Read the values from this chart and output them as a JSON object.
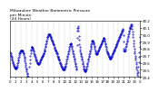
{
  "title": "Milwaukee Weather Barometric Pressure\nper Minute\n(24 Hours)",
  "title_fontsize": 3.2,
  "bg_color": "#ffffff",
  "line_color": "#0000cc",
  "marker_size": 0.8,
  "grid_color": "#aaaaaa",
  "grid_style": "--",
  "ylim": [
    29.4,
    30.2
  ],
  "xlim": [
    0,
    1440
  ],
  "xtick_step": 60,
  "tick_fontsize": 2.8,
  "pressure_data": [
    29.75,
    29.73,
    29.71,
    29.7,
    29.68,
    29.67,
    29.65,
    29.64,
    29.62,
    29.61,
    29.59,
    29.58,
    29.57,
    29.56,
    29.55,
    29.54,
    29.53,
    29.53,
    29.52,
    29.52,
    29.52,
    29.53,
    29.54,
    29.55,
    29.57,
    29.59,
    29.61,
    29.63,
    29.65,
    29.67,
    29.69,
    29.71,
    29.73,
    29.74,
    29.75,
    29.76,
    29.77,
    29.78,
    29.78,
    29.78,
    29.78,
    29.77,
    29.77,
    29.76,
    29.75,
    29.74,
    29.73,
    29.71,
    29.69,
    29.67,
    29.65,
    29.62,
    29.6,
    29.57,
    29.55,
    29.52,
    29.5,
    29.48,
    29.46,
    29.44,
    29.42,
    29.4,
    29.39,
    29.38,
    29.37,
    29.36,
    29.55,
    29.6,
    29.65,
    29.7,
    29.74,
    29.77,
    29.79,
    29.81,
    29.82,
    29.83,
    29.82,
    29.81,
    29.8,
    29.79,
    29.78,
    29.76,
    29.74,
    29.72,
    29.71,
    29.7,
    29.68,
    29.67,
    29.65,
    29.64,
    29.63,
    29.62,
    29.61,
    29.6,
    29.59,
    29.59,
    29.58,
    29.58,
    29.58,
    29.58,
    29.59,
    29.6,
    29.61,
    29.62,
    29.63,
    29.64,
    29.65,
    29.66,
    29.67,
    29.68,
    29.69,
    29.7,
    29.7,
    29.71,
    29.72,
    29.73,
    29.74,
    29.76,
    29.77,
    29.78,
    29.8,
    29.82,
    29.84,
    29.86,
    29.88,
    29.9,
    29.92,
    29.94,
    29.96,
    29.97,
    29.98,
    29.99,
    30.0,
    30.01,
    30.01,
    30.01,
    30.0,
    29.99,
    29.98,
    29.97,
    29.96,
    29.95,
    29.94,
    29.93,
    29.92,
    29.91,
    29.9,
    29.89,
    29.88,
    29.87,
    29.86,
    29.85,
    29.83,
    29.81,
    29.8,
    29.79,
    29.78,
    29.77,
    29.76,
    29.75,
    29.74,
    29.73,
    29.72,
    29.7,
    29.69,
    29.68,
    29.67,
    29.66,
    29.65,
    29.64,
    29.63,
    29.61,
    29.6,
    29.59,
    29.58,
    29.57,
    29.56,
    29.55,
    29.54,
    29.53,
    29.52,
    29.52,
    29.51,
    29.5,
    29.5,
    29.5,
    29.51,
    29.52,
    29.53,
    29.54,
    29.55,
    29.56,
    29.58,
    29.6,
    29.62,
    29.64,
    29.66,
    29.68,
    29.7,
    29.72,
    29.74,
    29.76,
    29.78,
    29.8,
    29.82,
    29.84,
    29.86,
    29.87,
    29.88,
    29.88,
    29.87,
    29.86,
    29.84,
    29.82,
    29.8,
    29.78,
    29.76,
    29.74,
    29.72,
    29.7,
    29.68,
    29.66,
    29.64,
    29.62,
    29.6,
    29.58,
    29.56,
    29.54,
    29.52,
    29.5,
    29.85,
    29.95,
    30.05,
    30.1,
    30.12,
    30.1,
    30.05,
    29.98,
    29.93,
    29.87,
    29.83,
    29.79,
    29.76,
    29.74,
    29.72,
    29.7,
    29.68,
    29.66,
    29.64,
    29.62,
    29.6,
    29.58,
    29.56,
    29.54,
    29.52,
    29.51,
    29.5,
    29.49,
    29.48,
    29.48,
    29.48,
    29.49,
    29.5,
    29.52,
    29.54,
    29.56,
    29.58,
    29.6,
    29.62,
    29.64,
    29.66,
    29.68,
    29.7,
    29.72,
    29.74,
    29.76,
    29.78,
    29.8,
    29.82,
    29.84,
    29.86,
    29.88,
    29.9,
    29.91,
    29.92,
    29.91,
    29.9,
    29.89,
    29.88,
    29.86,
    29.84,
    29.82,
    29.8,
    29.78,
    29.76,
    29.74,
    29.73,
    29.72,
    29.72,
    29.72,
    29.73,
    29.74,
    29.75,
    29.76,
    29.77,
    29.78,
    29.79,
    29.8,
    29.81,
    29.82,
    29.83,
    29.84,
    29.85,
    29.86,
    29.87,
    29.88,
    29.89,
    29.9,
    29.91,
    29.92,
    29.93,
    29.94,
    29.95,
    29.95,
    29.95,
    29.94,
    29.92,
    29.9,
    29.88,
    29.86,
    29.84,
    29.82,
    29.8,
    29.78,
    29.76,
    29.75,
    29.74,
    29.73,
    29.72,
    29.71,
    29.7,
    29.69,
    29.68,
    29.67,
    29.66,
    29.66,
    29.66,
    29.66,
    29.67,
    29.68,
    29.69,
    29.7,
    29.71,
    29.72,
    29.73,
    29.74,
    29.75,
    29.76,
    29.77,
    29.78,
    29.79,
    29.8,
    29.81,
    29.82,
    29.83,
    29.84,
    29.85,
    29.86,
    29.87,
    29.88,
    29.89,
    29.9,
    29.91,
    29.92,
    29.93,
    29.94,
    29.95,
    29.96,
    29.97,
    29.98,
    29.99,
    30.0,
    30.01,
    30.02,
    30.03,
    30.04,
    30.05,
    30.06,
    30.07,
    30.08,
    29.99,
    29.9,
    29.8,
    29.78,
    29.77,
    29.76,
    29.77,
    29.78,
    29.8,
    29.82,
    29.84,
    29.86,
    29.88,
    29.9,
    29.92,
    29.94,
    29.96,
    29.98,
    30.0,
    30.02,
    30.04,
    30.06,
    30.08,
    30.09,
    30.1,
    30.11,
    30.12,
    30.13,
    30.14,
    30.15,
    30.12,
    30.08,
    30.04,
    30.0,
    29.96,
    29.92,
    29.88,
    29.84,
    29.8,
    29.76,
    29.73,
    29.7,
    29.67,
    29.64,
    29.61,
    29.58,
    29.55,
    29.52,
    29.49,
    29.46,
    29.43,
    29.4,
    29.47,
    29.54,
    29.61,
    29.68,
    29.75,
    29.82,
    29.89,
    29.96
  ]
}
